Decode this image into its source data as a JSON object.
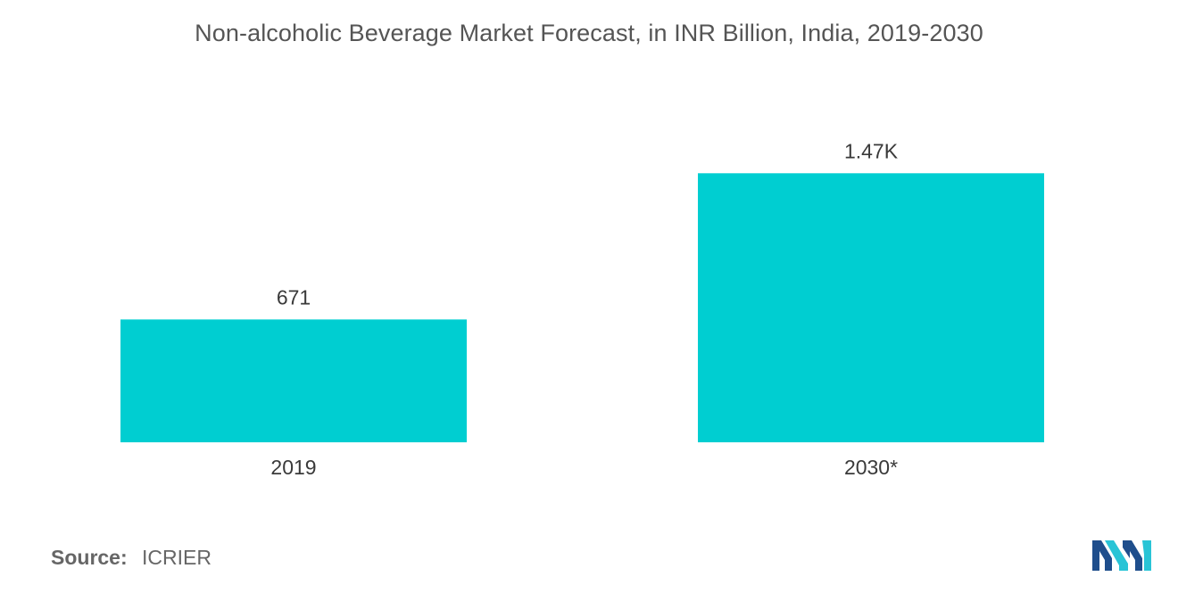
{
  "chart_data": {
    "type": "bar",
    "title": "Non-alcoholic Beverage Market Forecast, in INR Billion, India,  2019-2030",
    "categories": [
      "2019",
      "2030*"
    ],
    "values": [
      671,
      1470
    ],
    "value_labels": [
      "671",
      "1.47K"
    ],
    "xlabel": "",
    "ylabel": "",
    "ylim": [
      0,
      2100
    ],
    "grid": false,
    "bar_color": "#00CED1"
  },
  "source": {
    "key": "Source:",
    "value": "ICRIER"
  },
  "logo": {
    "icon": "mordor-intelligence-logo",
    "colors": [
      "#1F4E8C",
      "#29C4D6"
    ]
  }
}
